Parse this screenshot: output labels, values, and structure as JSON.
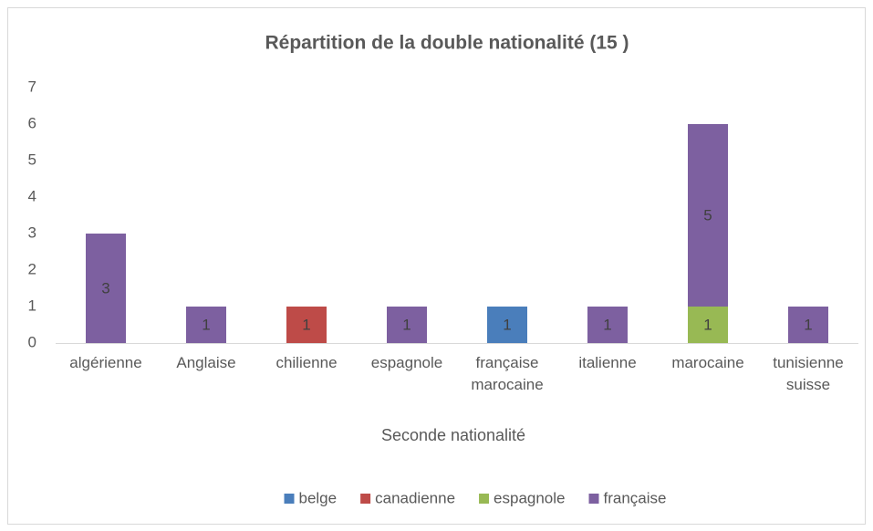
{
  "chart_data": {
    "type": "stacked_bar",
    "title": "Répartition de la double nationalité (15 )",
    "x_label": "Seconde nationalité",
    "categories": [
      "algérienne",
      "Anglaise",
      "chilienne",
      "espagnole",
      "française marocaine",
      "italienne",
      "marocaine",
      "tunisienne suisse"
    ],
    "series": [
      {
        "name": "belge",
        "color": "#4a7ebb",
        "values": [
          null,
          null,
          null,
          null,
          1,
          null,
          null,
          null
        ]
      },
      {
        "name": "canadienne",
        "color": "#be4b48",
        "values": [
          null,
          null,
          1,
          null,
          null,
          null,
          null,
          null
        ]
      },
      {
        "name": "espagnole",
        "color": "#98b954",
        "values": [
          null,
          null,
          null,
          null,
          null,
          null,
          1,
          null
        ]
      },
      {
        "name": "française",
        "color": "#7d60a0",
        "values": [
          3,
          1,
          null,
          1,
          null,
          1,
          5,
          1
        ]
      }
    ],
    "ylim": [
      0,
      7
    ],
    "yticks": [
      0,
      1,
      2,
      3,
      4,
      5,
      6,
      7
    ],
    "grid": false,
    "legend": "bottom"
  }
}
